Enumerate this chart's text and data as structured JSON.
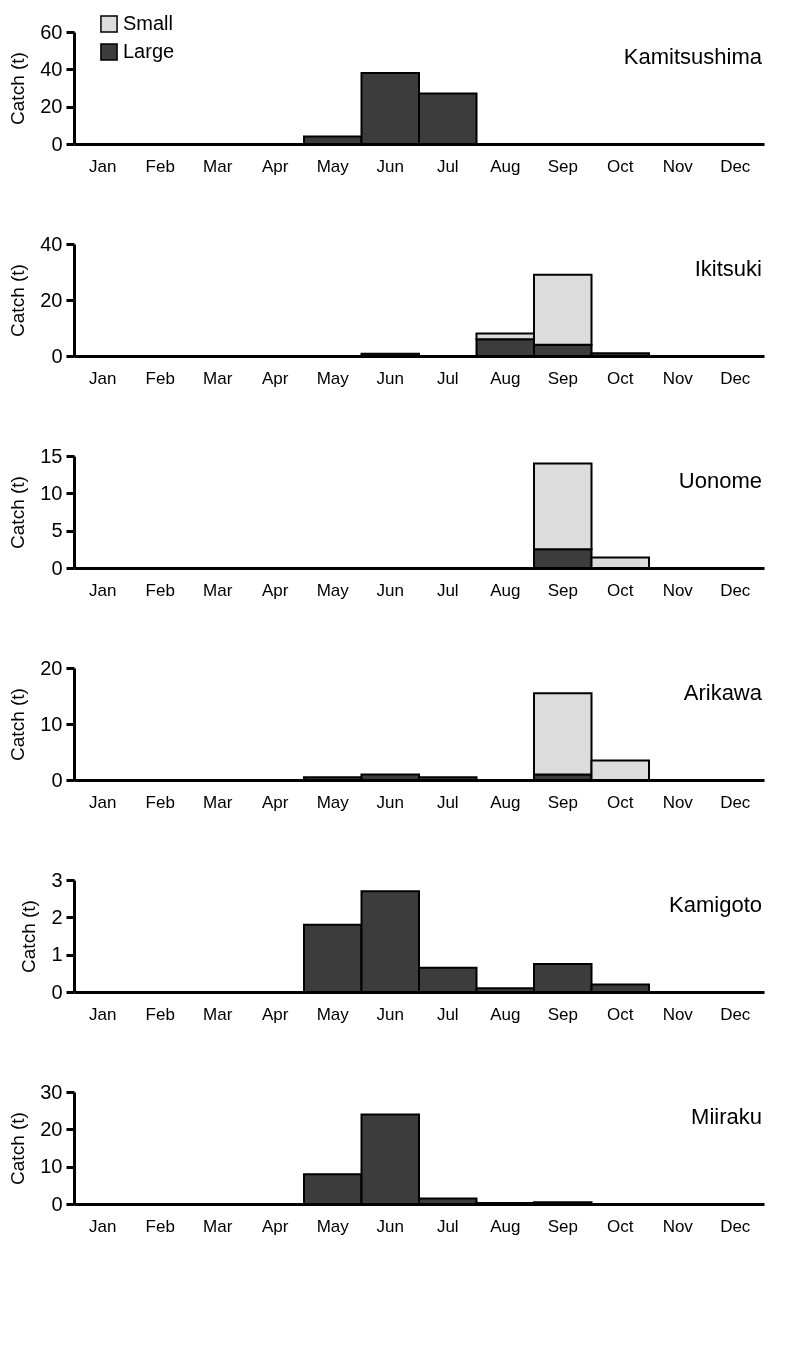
{
  "chart_data": [
    {
      "type": "bar",
      "stacked": true,
      "categories": [
        "Jan",
        "Feb",
        "Mar",
        "Apr",
        "May",
        "Jun",
        "Jul",
        "Aug",
        "Sep",
        "Oct",
        "Nov",
        "Dec"
      ],
      "ylabel": "Catch (t)",
      "ylim": [
        0,
        60
      ],
      "yticks": [
        0,
        20,
        40,
        60
      ],
      "legend": "top left",
      "annotations": [
        "Kamitsushima"
      ],
      "series": [
        {
          "name": "Large",
          "color": "#3c3c3c",
          "values": [
            0,
            0,
            0,
            0,
            4,
            38,
            27,
            0,
            0,
            0,
            0,
            0
          ]
        },
        {
          "name": "Small",
          "color": "#dcdcdc",
          "values": [
            0,
            0,
            0,
            0,
            0,
            0,
            0,
            0,
            0,
            0,
            0,
            0
          ]
        }
      ]
    },
    {
      "type": "bar",
      "stacked": true,
      "categories": [
        "Jan",
        "Feb",
        "Mar",
        "Apr",
        "May",
        "Jun",
        "Jul",
        "Aug",
        "Sep",
        "Oct",
        "Nov",
        "Dec"
      ],
      "ylabel": "Catch (t)",
      "ylim": [
        0,
        40
      ],
      "yticks": [
        0,
        20,
        40
      ],
      "annotations": [
        "Ikitsuki"
      ],
      "series": [
        {
          "color": "#3c3c3c",
          "values": [
            0,
            0,
            0,
            0,
            0,
            0.8,
            0,
            6,
            4,
            1,
            0,
            0
          ]
        },
        {
          "color": "#dcdcdc",
          "values": [
            0,
            0,
            0,
            0,
            0,
            0,
            0,
            2,
            25,
            0,
            0,
            0
          ]
        }
      ]
    },
    {
      "type": "bar",
      "stacked": true,
      "categories": [
        "Jan",
        "Feb",
        "Mar",
        "Apr",
        "May",
        "Jun",
        "Jul",
        "Aug",
        "Sep",
        "Oct",
        "Nov",
        "Dec"
      ],
      "ylabel": "Catch (t)",
      "ylim": [
        0,
        15
      ],
      "yticks": [
        0,
        5,
        10,
        15
      ],
      "annotations": [
        "Uonome"
      ],
      "series": [
        {
          "color": "#3c3c3c",
          "values": [
            0,
            0,
            0,
            0,
            0,
            0,
            0,
            0,
            2.5,
            null,
            0,
            0
          ]
        },
        {
          "color": "#dcdcdc",
          "values": [
            0,
            0,
            0,
            0,
            0,
            0,
            0,
            0,
            11.5,
            1.4,
            0,
            0
          ]
        }
      ]
    },
    {
      "type": "bar",
      "stacked": true,
      "categories": [
        "Jan",
        "Feb",
        "Mar",
        "Apr",
        "May",
        "Jun",
        "Jul",
        "Aug",
        "Sep",
        "Oct",
        "Nov",
        "Dec"
      ],
      "ylabel": "Catch (t)",
      "ylim": [
        0,
        20
      ],
      "yticks": [
        0,
        10,
        20
      ],
      "annotations": [
        "Arikawa"
      ],
      "series": [
        {
          "color": "#3c3c3c",
          "values": [
            0,
            0,
            0,
            0,
            0.5,
            1,
            0.5,
            0,
            1,
            null,
            0,
            0
          ]
        },
        {
          "color": "#dcdcdc",
          "values": [
            0,
            0,
            0,
            0,
            0,
            0,
            0,
            0,
            14.5,
            3.5,
            0,
            0
          ]
        }
      ]
    },
    {
      "type": "bar",
      "stacked": true,
      "categories": [
        "Jan",
        "Feb",
        "Mar",
        "Apr",
        "May",
        "Jun",
        "Jul",
        "Aug",
        "Sep",
        "Oct",
        "Nov",
        "Dec"
      ],
      "ylabel": "Catch (t)",
      "ylim": [
        0,
        3
      ],
      "yticks": [
        0,
        1,
        2,
        3
      ],
      "annotations": [
        "Kamigoto"
      ],
      "series": [
        {
          "color": "#3c3c3c",
          "values": [
            0,
            0,
            0,
            0,
            1.8,
            2.7,
            0.65,
            0.1,
            0.75,
            0.2,
            0,
            0
          ]
        },
        {
          "color": "#dcdcdc",
          "values": [
            0,
            0,
            0,
            0,
            0,
            0,
            0,
            0,
            0,
            0,
            0,
            0
          ]
        }
      ]
    },
    {
      "type": "bar",
      "stacked": true,
      "categories": [
        "Jan",
        "Feb",
        "Mar",
        "Apr",
        "May",
        "Jun",
        "Jul",
        "Aug",
        "Sep",
        "Oct",
        "Nov",
        "Dec"
      ],
      "ylabel": "Catch (t)",
      "ylim": [
        0,
        30
      ],
      "yticks": [
        0,
        10,
        20,
        30
      ],
      "annotations": [
        "Miiraku"
      ],
      "series": [
        {
          "color": "#3c3c3c",
          "values": [
            0,
            0,
            0,
            0,
            8,
            24,
            1.5,
            0.3,
            0.5,
            0,
            0,
            0
          ]
        },
        {
          "color": "#dcdcdc",
          "values": [
            0,
            0,
            0,
            0,
            0,
            0,
            0,
            0,
            0,
            0,
            0,
            0
          ]
        }
      ]
    }
  ]
}
